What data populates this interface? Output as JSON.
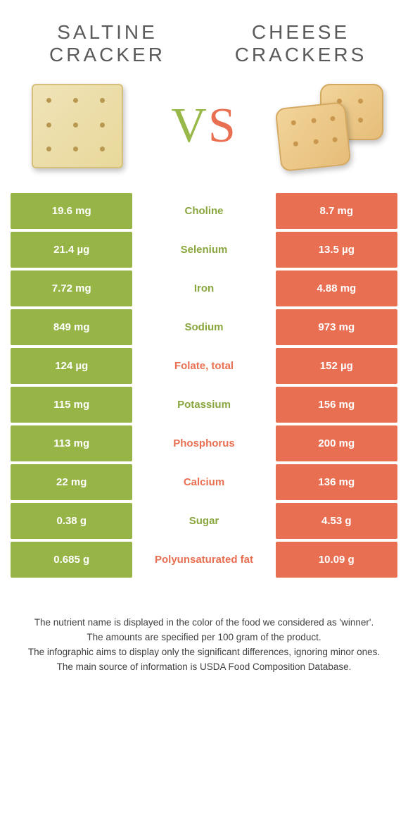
{
  "left": {
    "title": "SALTINE CRACKER"
  },
  "right": {
    "title": "CHEESE CRACKERS"
  },
  "vs": {
    "v": "V",
    "s": "S"
  },
  "colors": {
    "green": "#96b546",
    "orange": "#e86f51"
  },
  "rows": [
    {
      "label": "Choline",
      "left": "19.6 mg",
      "right": "8.7 mg",
      "winner": "left"
    },
    {
      "label": "Selenium",
      "left": "21.4 µg",
      "right": "13.5 µg",
      "winner": "left"
    },
    {
      "label": "Iron",
      "left": "7.72 mg",
      "right": "4.88 mg",
      "winner": "left"
    },
    {
      "label": "Sodium",
      "left": "849 mg",
      "right": "973 mg",
      "winner": "left"
    },
    {
      "label": "Folate, total",
      "left": "124 µg",
      "right": "152 µg",
      "winner": "right"
    },
    {
      "label": "Potassium",
      "left": "115 mg",
      "right": "156 mg",
      "winner": "left"
    },
    {
      "label": "Phosphorus",
      "left": "113 mg",
      "right": "200 mg",
      "winner": "right"
    },
    {
      "label": "Calcium",
      "left": "22 mg",
      "right": "136 mg",
      "winner": "right"
    },
    {
      "label": "Sugar",
      "left": "0.38 g",
      "right": "4.53 g",
      "winner": "left"
    },
    {
      "label": "Polyunsaturated fat",
      "left": "0.685 g",
      "right": "10.09 g",
      "winner": "right"
    }
  ],
  "footer": {
    "l1": "The nutrient name is displayed in the color of the food we considered as 'winner'.",
    "l2": "The amounts are specified per 100 gram of the product.",
    "l3": "The infographic aims to display only the significant differences, ignoring minor ones.",
    "l4": "The main source of information is USDA Food Composition Database."
  }
}
